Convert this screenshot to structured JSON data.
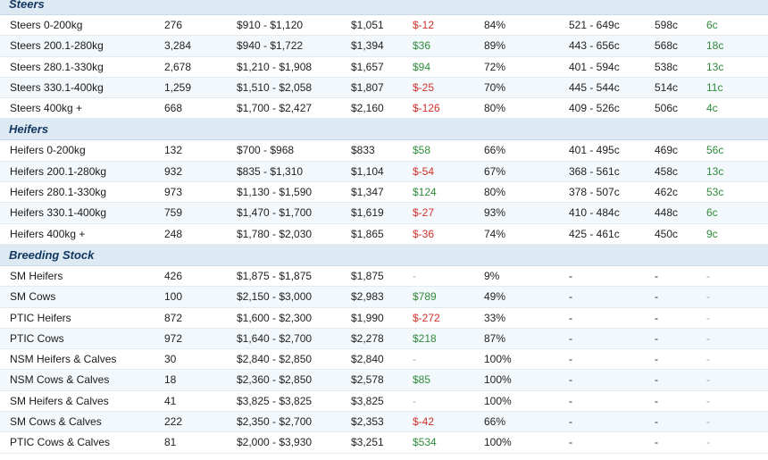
{
  "sections": [
    {
      "title": "Steers",
      "rows": [
        [
          "Steers 0-200kg",
          "276",
          "$910 - $1,120",
          "$1,051",
          "$-12",
          "84%",
          "521 - 649c",
          "598c",
          "6c"
        ],
        [
          "Steers 200.1-280kg",
          "3,284",
          "$940 - $1,722",
          "$1,394",
          "$36",
          "89%",
          "443 - 656c",
          "568c",
          "18c"
        ],
        [
          "Steers 280.1-330kg",
          "2,678",
          "$1,210 - $1,908",
          "$1,657",
          "$94",
          "72%",
          "401 - 594c",
          "538c",
          "13c"
        ],
        [
          "Steers 330.1-400kg",
          "1,259",
          "$1,510 - $2,058",
          "$1,807",
          "$-25",
          "70%",
          "445 - 544c",
          "514c",
          "11c"
        ],
        [
          "Steers 400kg +",
          "668",
          "$1,700 - $2,427",
          "$2,160",
          "$-126",
          "80%",
          "409 - 526c",
          "506c",
          "4c"
        ]
      ]
    },
    {
      "title": "Heifers",
      "rows": [
        [
          "Heifers 0-200kg",
          "132",
          "$700 - $968",
          "$833",
          "$58",
          "66%",
          "401 - 495c",
          "469c",
          "56c"
        ],
        [
          "Heifers 200.1-280kg",
          "932",
          "$835 - $1,310",
          "$1,104",
          "$-54",
          "67%",
          "368 - 561c",
          "458c",
          "13c"
        ],
        [
          "Heifers 280.1-330kg",
          "973",
          "$1,130 - $1,590",
          "$1,347",
          "$124",
          "80%",
          "378 - 507c",
          "462c",
          "53c"
        ],
        [
          "Heifers 330.1-400kg",
          "759",
          "$1,470 - $1,700",
          "$1,619",
          "$-27",
          "93%",
          "410 - 484c",
          "448c",
          "6c"
        ],
        [
          "Heifers 400kg +",
          "248",
          "$1,780 - $2,030",
          "$1,865",
          "$-36",
          "74%",
          "425 - 461c",
          "450c",
          "9c"
        ]
      ]
    },
    {
      "title": "Breeding Stock",
      "rows": [
        [
          "SM Heifers",
          "426",
          "$1,875 - $1,875",
          "$1,875",
          "-",
          "9%",
          "-",
          "-",
          "-"
        ],
        [
          "SM Cows",
          "100",
          "$2,150 - $3,000",
          "$2,983",
          "$789",
          "49%",
          "-",
          "-",
          "-"
        ],
        [
          "PTIC Heifers",
          "872",
          "$1,600 - $2,300",
          "$1,990",
          "$-272",
          "33%",
          "-",
          "-",
          "-"
        ],
        [
          "PTIC Cows",
          "972",
          "$1,640 - $2,700",
          "$2,278",
          "$218",
          "87%",
          "-",
          "-",
          "-"
        ],
        [
          "NSM Heifers & Calves",
          "30",
          "$2,840 - $2,850",
          "$2,840",
          "-",
          "100%",
          "-",
          "-",
          "-"
        ],
        [
          "NSM Cows & Calves",
          "18",
          "$2,360 - $2,850",
          "$2,578",
          "$85",
          "100%",
          "-",
          "-",
          "-"
        ],
        [
          "SM Heifers & Calves",
          "41",
          "$3,825 - $3,825",
          "$3,825",
          "-",
          "100%",
          "-",
          "-",
          "-"
        ],
        [
          "SM Cows & Calves",
          "222",
          "$2,350 - $2,700",
          "$2,353",
          "$-42",
          "66%",
          "-",
          "-",
          "-"
        ],
        [
          "PTIC Cows & Calves",
          "81",
          "$2,000 - $3,930",
          "$3,251",
          "$534",
          "100%",
          "-",
          "-",
          "-"
        ]
      ]
    }
  ],
  "colors": {
    "positive": "#2e8b3a",
    "negative": "#d0302a",
    "neutral": "#9aa3ab",
    "header_bg": "#dde9f3",
    "header_text": "#11365f",
    "alt_row": "#f3f8fc"
  }
}
